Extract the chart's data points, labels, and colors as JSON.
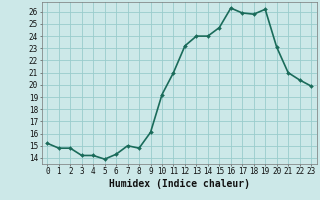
{
  "title": "",
  "xlabel": "Humidex (Indice chaleur)",
  "x": [
    0,
    1,
    2,
    3,
    4,
    5,
    6,
    7,
    8,
    9,
    10,
    11,
    12,
    13,
    14,
    15,
    16,
    17,
    18,
    19,
    20,
    21,
    22,
    23
  ],
  "y": [
    15.2,
    14.8,
    14.8,
    14.2,
    14.2,
    13.9,
    14.3,
    15.0,
    14.8,
    16.1,
    19.2,
    21.0,
    23.2,
    24.0,
    24.0,
    24.7,
    26.3,
    25.9,
    25.8,
    26.2,
    23.1,
    21.0,
    20.4,
    19.9
  ],
  "line_color": "#1a6b5a",
  "marker": "D",
  "marker_size": 2.0,
  "bg_color": "#cce8e8",
  "grid_color": "#99cccc",
  "ylim": [
    13.5,
    26.8
  ],
  "xlim": [
    -0.5,
    23.5
  ],
  "yticks": [
    14,
    15,
    16,
    17,
    18,
    19,
    20,
    21,
    22,
    23,
    24,
    25,
    26
  ],
  "xticks": [
    0,
    1,
    2,
    3,
    4,
    5,
    6,
    7,
    8,
    9,
    10,
    11,
    12,
    13,
    14,
    15,
    16,
    17,
    18,
    19,
    20,
    21,
    22,
    23
  ],
  "tick_label_fontsize": 5.5,
  "xlabel_fontsize": 7.0,
  "line_width": 1.2
}
